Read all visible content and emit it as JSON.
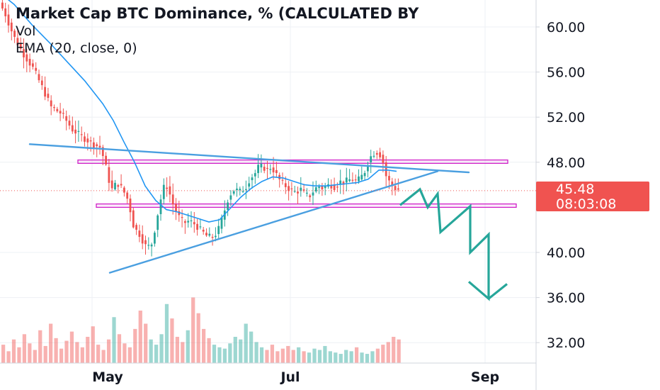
{
  "legend": {
    "title": "Market Cap BTC Dominance, % (CALCULATED BY",
    "vol_label": "Vol",
    "ema_label": "EMA (20, close, 0)"
  },
  "price_badge": {
    "price": "45.48",
    "countdown": "08:03:08",
    "color": "#f05350"
  },
  "colors": {
    "up": "#26a69a",
    "down": "#ef5350",
    "ema": "#2196f3",
    "trendline": "#4a9fe0",
    "zone": "#d020c8",
    "projection": "#26a69a"
  },
  "chart_data": {
    "type": "candlestick",
    "title": "Market Cap BTC Dominance, % (CALCULATED BY",
    "x_ticks": [
      "May",
      "Jul",
      "Sep"
    ],
    "y_ticks": [
      "60.00",
      "56.00",
      "52.00",
      "48.00",
      "40.00",
      "36.00",
      "32.00"
    ],
    "ylim": [
      30.5,
      63
    ],
    "current_price": 45.48,
    "path": [
      [
        0,
        62.4
      ],
      [
        10,
        61.2
      ],
      [
        22,
        59.2
      ],
      [
        35,
        57.7
      ],
      [
        50,
        56.3
      ],
      [
        62,
        54.7
      ],
      [
        75,
        52.9
      ],
      [
        90,
        52.3
      ],
      [
        105,
        50.9
      ],
      [
        120,
        50.2
      ],
      [
        135,
        49.6
      ],
      [
        145,
        49.3
      ],
      [
        152,
        47.7
      ],
      [
        160,
        45.5
      ],
      [
        168,
        46.2
      ],
      [
        176,
        45.6
      ],
      [
        184,
        44.6
      ],
      [
        192,
        42.2
      ],
      [
        200,
        41.6
      ],
      [
        208,
        40.6
      ],
      [
        216,
        40.5
      ],
      [
        222,
        42.2
      ],
      [
        228,
        44.2
      ],
      [
        233,
        45.6
      ],
      [
        237,
        46.1
      ],
      [
        242,
        45.3
      ],
      [
        248,
        44.1
      ],
      [
        255,
        43.2
      ],
      [
        262,
        42.6
      ],
      [
        270,
        42.8
      ],
      [
        278,
        42.5
      ],
      [
        286,
        42.0
      ],
      [
        294,
        41.5
      ],
      [
        302,
        41.3
      ],
      [
        310,
        41.8
      ],
      [
        318,
        43.3
      ],
      [
        326,
        45.0
      ],
      [
        334,
        45.6
      ],
      [
        342,
        45.4
      ],
      [
        350,
        45.8
      ],
      [
        356,
        46.6
      ],
      [
        362,
        46.9
      ],
      [
        368,
        47.6
      ],
      [
        374,
        47.6
      ],
      [
        380,
        47.3
      ],
      [
        386,
        47.6
      ],
      [
        392,
        47.0
      ],
      [
        398,
        46.4
      ],
      [
        404,
        46.0
      ],
      [
        410,
        45.7
      ],
      [
        416,
        45.4
      ],
      [
        422,
        45.4
      ],
      [
        428,
        45.6
      ],
      [
        434,
        45.1
      ],
      [
        440,
        45.0
      ],
      [
        446,
        45.5
      ],
      [
        452,
        45.9
      ],
      [
        458,
        45.7
      ],
      [
        464,
        45.9
      ],
      [
        470,
        46.0
      ],
      [
        476,
        45.8
      ],
      [
        482,
        46.3
      ],
      [
        488,
        46.2
      ],
      [
        494,
        46.4
      ],
      [
        500,
        46.5
      ],
      [
        506,
        46.3
      ],
      [
        512,
        46.6
      ],
      [
        518,
        47.2
      ],
      [
        524,
        48.3
      ],
      [
        530,
        48.8
      ],
      [
        536,
        48.9
      ],
      [
        542,
        48.5
      ],
      [
        548,
        46.8
      ],
      [
        554,
        46.1
      ],
      [
        558,
        45.8
      ],
      [
        563,
        45.6
      ]
    ],
    "ema_path": [
      [
        0,
        63.0
      ],
      [
        20,
        62.0
      ],
      [
        45,
        60.2
      ],
      [
        70,
        58.6
      ],
      [
        95,
        56.9
      ],
      [
        120,
        55.2
      ],
      [
        145,
        53.2
      ],
      [
        160,
        51.7
      ],
      [
        175,
        49.8
      ],
      [
        190,
        48.0
      ],
      [
        205,
        45.9
      ],
      [
        220,
        44.6
      ],
      [
        235,
        43.8
      ],
      [
        250,
        43.6
      ],
      [
        265,
        43.3
      ],
      [
        280,
        43.0
      ],
      [
        295,
        42.7
      ],
      [
        310,
        42.9
      ],
      [
        325,
        43.9
      ],
      [
        340,
        44.9
      ],
      [
        355,
        45.7
      ],
      [
        370,
        46.3
      ],
      [
        385,
        46.7
      ],
      [
        400,
        46.6
      ],
      [
        415,
        46.3
      ],
      [
        430,
        46.0
      ],
      [
        445,
        45.9
      ],
      [
        460,
        45.9
      ],
      [
        475,
        46.0
      ],
      [
        490,
        46.1
      ],
      [
        505,
        46.2
      ],
      [
        520,
        46.5
      ],
      [
        535,
        47.3
      ],
      [
        548,
        47.3
      ],
      [
        560,
        47.2
      ]
    ],
    "volume": [
      14,
      9,
      18,
      12,
      22,
      15,
      10,
      25,
      13,
      30,
      19,
      11,
      17,
      24,
      16,
      12,
      20,
      28,
      14,
      10,
      18,
      35,
      22,
      15,
      12,
      26,
      40,
      30,
      18,
      14,
      22,
      45,
      34,
      20,
      16,
      25,
      50,
      38,
      26,
      19,
      14,
      12,
      11,
      15,
      20,
      18,
      30,
      24,
      16,
      12,
      10,
      14,
      9,
      11,
      13,
      10,
      12,
      9,
      8,
      11,
      10,
      13,
      9,
      8,
      7,
      10,
      9,
      12,
      8,
      7,
      9,
      11,
      14,
      16,
      20,
      18
    ],
    "trendlines": [
      {
        "name": "upper-resistance",
        "from": [
          42,
          49.6
        ],
        "to": [
          662,
          47.1
        ]
      },
      {
        "name": "rising-support",
        "from": [
          155,
          38.2
        ],
        "to": [
          618,
          47.2
        ]
      }
    ],
    "zones": [
      {
        "name": "upper-zone",
        "y_top": 48.2,
        "y_bottom": 47.9,
        "x_from": 110,
        "x_to": 717
      },
      {
        "name": "lower-zone",
        "y_top": 44.3,
        "y_bottom": 44.0,
        "x_from": 136,
        "x_to": 729
      }
    ],
    "projection": [
      [
        565,
        44.2
      ],
      [
        593,
        45.6
      ],
      [
        604,
        44.0
      ],
      [
        618,
        45.2
      ],
      [
        622,
        41.8
      ],
      [
        664,
        44.1
      ],
      [
        664,
        40.0
      ],
      [
        690,
        41.6
      ],
      [
        690,
        35.9
      ],
      [
        662,
        37.4
      ],
      [
        690,
        35.9
      ],
      [
        716,
        37.2
      ]
    ]
  }
}
